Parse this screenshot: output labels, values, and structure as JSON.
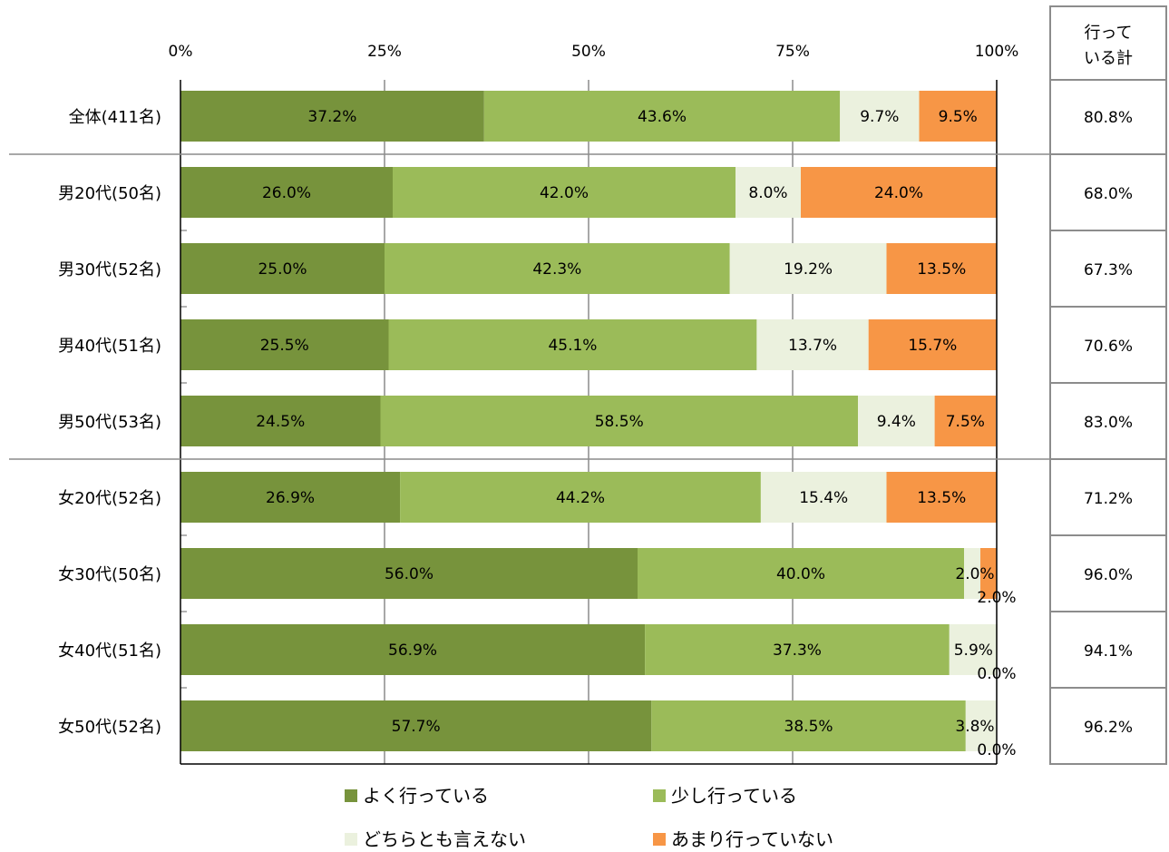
{
  "chart_data": {
    "type": "bar",
    "orientation": "horizontal",
    "stacked": true,
    "percent": true,
    "xlim": [
      0,
      100
    ],
    "x_ticks": [
      "0%",
      "25%",
      "50%",
      "75%",
      "100%"
    ],
    "grid": true,
    "legend_position": "bottom",
    "categories": [
      "全体(411名)",
      "男20代(50名)",
      "男30代(52名)",
      "男40代(51名)",
      "男50代(53名)",
      "女20代(52名)",
      "女30代(50名)",
      "女40代(51名)",
      "女50代(52名)"
    ],
    "series": [
      {
        "name": "よく行っている",
        "color": "#77933c",
        "values": [
          37.2,
          26.0,
          25.0,
          25.5,
          24.5,
          26.9,
          56.0,
          56.9,
          57.7
        ],
        "labels": [
          "37.2%",
          "26.0%",
          "25.0%",
          "25.5%",
          "24.5%",
          "26.9%",
          "56.0%",
          "56.9%",
          "57.7%"
        ]
      },
      {
        "name": "少し行っている",
        "color": "#9bbb59",
        "values": [
          43.6,
          42.0,
          42.3,
          45.1,
          58.5,
          44.2,
          40.0,
          37.3,
          38.5
        ],
        "labels": [
          "43.6%",
          "42.0%",
          "42.3%",
          "45.1%",
          "58.5%",
          "44.2%",
          "40.0%",
          "37.3%",
          "38.5%"
        ]
      },
      {
        "name": "どちらとも言えない",
        "color": "#ebf1de",
        "values": [
          9.7,
          8.0,
          19.2,
          13.7,
          9.4,
          15.4,
          2.0,
          5.9,
          3.8
        ],
        "labels": [
          "9.7%",
          "8.0%",
          "19.2%",
          "13.7%",
          "9.4%",
          "15.4%",
          "2.0%",
          "5.9%",
          "3.8%"
        ]
      },
      {
        "name": "あまり行っていない",
        "color": "#f79646",
        "values": [
          9.5,
          24.0,
          13.5,
          15.7,
          7.5,
          13.5,
          2.0,
          0.0,
          0.0
        ],
        "labels": [
          "9.5%",
          "24.0%",
          "13.5%",
          "15.7%",
          "7.5%",
          "13.5%",
          "2.0%",
          "0.0%",
          "0.0%"
        ]
      }
    ],
    "total_column": {
      "header": [
        "行って",
        "いる計"
      ],
      "values": [
        "80.8%",
        "68.0%",
        "67.3%",
        "70.6%",
        "83.0%",
        "71.2%",
        "96.0%",
        "94.1%",
        "96.2%"
      ]
    }
  }
}
